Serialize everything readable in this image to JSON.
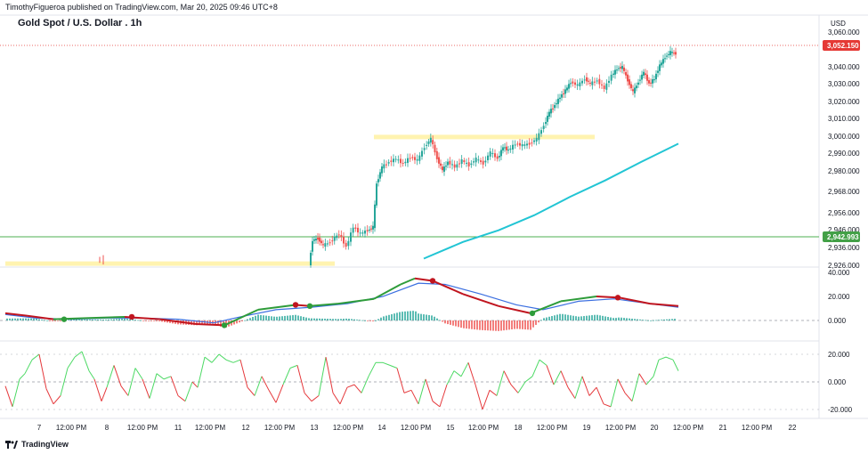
{
  "header": {
    "published_line": "TimothyFigueroa published on TradingView.com, Mar 20, 2025 09:46 UTC+8",
    "title": "Gold Spot / U.S. Dollar . 1h",
    "currency": "USD"
  },
  "footer": {
    "brand": "TradingView"
  },
  "colors": {
    "up": "#26a69a",
    "down": "#ef5350",
    "ma_line": "#22c5d4",
    "macd_fast": "#2e9c3a",
    "macd_fast_bear": "#c0151f",
    "macd_signal": "#3b6fe0",
    "zone": "#fff3b0",
    "hline_green": "#4caf50",
    "price_tag": "#e53935",
    "level_tag": "#43a047",
    "osc_up": "#4cd964",
    "osc_down": "#e5393c"
  },
  "price_scale": {
    "ticks": [
      "3,060.000",
      "3,040.000",
      "3,030.000",
      "3,020.000",
      "3,010.000",
      "3,000.000",
      "2,990.000",
      "2,980.000",
      "2,968.000",
      "2,956.000",
      "2,946.000",
      "2,936.000",
      "2,926.000"
    ],
    "last_price": "3,052.150",
    "level": "2,942.993"
  },
  "macd_scale": {
    "ticks": [
      "40.000",
      "20.000",
      "0.000"
    ]
  },
  "osc_scale": {
    "ticks": [
      "20.000",
      "0.000",
      "-20.000"
    ]
  },
  "time_axis": {
    "labels": [
      "7",
      "12:00 PM",
      "8",
      "12:00 PM",
      "11",
      "12:00 PM",
      "12",
      "12:00 PM",
      "13",
      "12:00 PM",
      "14",
      "12:00 PM",
      "15",
      "12:00 PM",
      "18",
      "12:00 PM",
      "19",
      "12:00 PM",
      "20",
      "12:00 PM",
      "21",
      "12:00 PM",
      "22"
    ]
  },
  "chart_data": {
    "type": "candlestick",
    "title": "Gold Spot / U.S. Dollar . 1h",
    "price_range": [
      2926,
      3066
    ],
    "macd_range": [
      -5,
      40
    ],
    "osc_range": [
      -25,
      25
    ],
    "price_path": [
      [
        348,
        2926
      ],
      [
        352,
        2941
      ],
      [
        358,
        2942
      ],
      [
        364,
        2938
      ],
      [
        372,
        2940
      ],
      [
        382,
        2945
      ],
      [
        390,
        2937
      ],
      [
        398,
        2949
      ],
      [
        406,
        2945
      ],
      [
        414,
        2947
      ],
      [
        420,
        2949
      ],
      [
        424,
        2975
      ],
      [
        430,
        2985
      ],
      [
        438,
        2988
      ],
      [
        446,
        2990
      ],
      [
        454,
        2987
      ],
      [
        462,
        2991
      ],
      [
        470,
        2989
      ],
      [
        478,
        2997
      ],
      [
        485,
        3002
      ],
      [
        492,
        2990
      ],
      [
        498,
        2983
      ],
      [
        504,
        2988
      ],
      [
        512,
        2985
      ],
      [
        520,
        2989
      ],
      [
        528,
        2986
      ],
      [
        536,
        2990
      ],
      [
        544,
        2987
      ],
      [
        552,
        2994
      ],
      [
        560,
        2990
      ],
      [
        566,
        2997
      ],
      [
        572,
        2995
      ],
      [
        580,
        2999
      ],
      [
        588,
        2998
      ],
      [
        596,
        2999
      ],
      [
        604,
        3002
      ],
      [
        612,
        3010
      ],
      [
        618,
        3018
      ],
      [
        624,
        3022
      ],
      [
        630,
        3027
      ],
      [
        636,
        3031
      ],
      [
        642,
        3036
      ],
      [
        650,
        3034
      ],
      [
        658,
        3038
      ],
      [
        664,
        3035
      ],
      [
        672,
        3037
      ],
      [
        680,
        3032
      ],
      [
        688,
        3040
      ],
      [
        694,
        3044
      ],
      [
        700,
        3045
      ],
      [
        706,
        3037
      ],
      [
        712,
        3030
      ],
      [
        718,
        3036
      ],
      [
        724,
        3042
      ],
      [
        730,
        3035
      ],
      [
        736,
        3038
      ],
      [
        742,
        3046
      ],
      [
        748,
        3051
      ],
      [
        754,
        3054
      ],
      [
        760,
        3053
      ]
    ],
    "early_candles": [
      [
        112,
        2928,
        2930
      ],
      [
        116,
        2927,
        2931
      ]
    ],
    "ma_points": [
      [
        476,
        2930
      ],
      [
        520,
        2940
      ],
      [
        560,
        2947
      ],
      [
        600,
        2956
      ],
      [
        640,
        2967
      ],
      [
        680,
        2977
      ],
      [
        720,
        2988
      ],
      [
        762,
        2999
      ]
    ],
    "zones": [
      {
        "x1": 6,
        "x2": 376,
        "price": 2927
      },
      {
        "x1": 420,
        "x2": 668,
        "price": 3003
      }
    ],
    "macd_fast": [
      [
        6,
        6
      ],
      [
        30,
        4
      ],
      [
        60,
        1
      ],
      [
        100,
        2
      ],
      [
        140,
        3
      ],
      [
        180,
        1
      ],
      [
        220,
        -3
      ],
      [
        252,
        -4
      ],
      [
        290,
        9
      ],
      [
        332,
        13
      ],
      [
        348,
        12
      ],
      [
        380,
        14
      ],
      [
        420,
        18
      ],
      [
        450,
        30
      ],
      [
        466,
        35
      ],
      [
        486,
        33
      ],
      [
        520,
        22
      ],
      [
        560,
        12
      ],
      [
        596,
        6
      ],
      [
        630,
        16
      ],
      [
        670,
        20
      ],
      [
        696,
        19
      ],
      [
        730,
        14
      ],
      [
        762,
        12
      ]
    ],
    "macd_signal": [
      [
        6,
        5
      ],
      [
        40,
        2
      ],
      [
        80,
        1
      ],
      [
        120,
        2
      ],
      [
        160,
        2
      ],
      [
        200,
        1
      ],
      [
        240,
        -2
      ],
      [
        270,
        3
      ],
      [
        310,
        9
      ],
      [
        350,
        11
      ],
      [
        390,
        14
      ],
      [
        430,
        20
      ],
      [
        470,
        31
      ],
      [
        500,
        30
      ],
      [
        540,
        22
      ],
      [
        580,
        13
      ],
      [
        610,
        9
      ],
      [
        650,
        16
      ],
      [
        690,
        18
      ],
      [
        730,
        14
      ],
      [
        762,
        11
      ]
    ],
    "macd_markers": [
      [
        72,
        1,
        "green"
      ],
      [
        148,
        3,
        "red"
      ],
      [
        252,
        -4,
        "green"
      ],
      [
        332,
        13,
        "red"
      ],
      [
        348,
        12,
        "green"
      ],
      [
        486,
        33,
        "red"
      ],
      [
        598,
        6,
        "green"
      ],
      [
        694,
        19,
        "red"
      ]
    ],
    "osc_points": [
      [
        6,
        -3
      ],
      [
        14,
        -18
      ],
      [
        22,
        2
      ],
      [
        28,
        6
      ],
      [
        36,
        16
      ],
      [
        44,
        20
      ],
      [
        52,
        -5
      ],
      [
        60,
        -16
      ],
      [
        68,
        -10
      ],
      [
        76,
        10
      ],
      [
        84,
        18
      ],
      [
        92,
        22
      ],
      [
        100,
        8
      ],
      [
        106,
        2
      ],
      [
        114,
        -14
      ],
      [
        120,
        -4
      ],
      [
        128,
        12
      ],
      [
        136,
        -3
      ],
      [
        144,
        -10
      ],
      [
        152,
        10
      ],
      [
        160,
        2
      ],
      [
        168,
        -12
      ],
      [
        176,
        6
      ],
      [
        184,
        2
      ],
      [
        192,
        4
      ],
      [
        200,
        -10
      ],
      [
        208,
        -14
      ],
      [
        216,
        0
      ],
      [
        222,
        -4
      ],
      [
        230,
        18
      ],
      [
        238,
        14
      ],
      [
        246,
        20
      ],
      [
        254,
        16
      ],
      [
        262,
        14
      ],
      [
        270,
        16
      ],
      [
        278,
        -4
      ],
      [
        286,
        -10
      ],
      [
        294,
        4
      ],
      [
        302,
        -6
      ],
      [
        310,
        -15
      ],
      [
        318,
        -2
      ],
      [
        326,
        10
      ],
      [
        334,
        12
      ],
      [
        342,
        -8
      ],
      [
        350,
        -14
      ],
      [
        358,
        -10
      ],
      [
        366,
        18
      ],
      [
        374,
        -8
      ],
      [
        382,
        -16
      ],
      [
        390,
        -4
      ],
      [
        398,
        -2
      ],
      [
        406,
        -8
      ],
      [
        414,
        4
      ],
      [
        422,
        14
      ],
      [
        430,
        14
      ],
      [
        438,
        12
      ],
      [
        446,
        10
      ],
      [
        454,
        -8
      ],
      [
        462,
        -6
      ],
      [
        470,
        -16
      ],
      [
        478,
        2
      ],
      [
        486,
        -14
      ],
      [
        494,
        -18
      ],
      [
        502,
        -2
      ],
      [
        510,
        8
      ],
      [
        518,
        4
      ],
      [
        526,
        14
      ],
      [
        534,
        -2
      ],
      [
        542,
        -20
      ],
      [
        550,
        -6
      ],
      [
        558,
        -10
      ],
      [
        566,
        8
      ],
      [
        574,
        -2
      ],
      [
        582,
        -8
      ],
      [
        590,
        0
      ],
      [
        598,
        4
      ],
      [
        606,
        16
      ],
      [
        614,
        12
      ],
      [
        622,
        -2
      ],
      [
        630,
        8
      ],
      [
        638,
        -4
      ],
      [
        646,
        -12
      ],
      [
        654,
        4
      ],
      [
        662,
        -10
      ],
      [
        670,
        -4
      ],
      [
        678,
        -16
      ],
      [
        686,
        -18
      ],
      [
        694,
        2
      ],
      [
        702,
        -8
      ],
      [
        710,
        -14
      ],
      [
        718,
        6
      ],
      [
        726,
        -2
      ],
      [
        734,
        4
      ],
      [
        740,
        16
      ],
      [
        748,
        18
      ],
      [
        756,
        16
      ],
      [
        762,
        8
      ]
    ]
  }
}
